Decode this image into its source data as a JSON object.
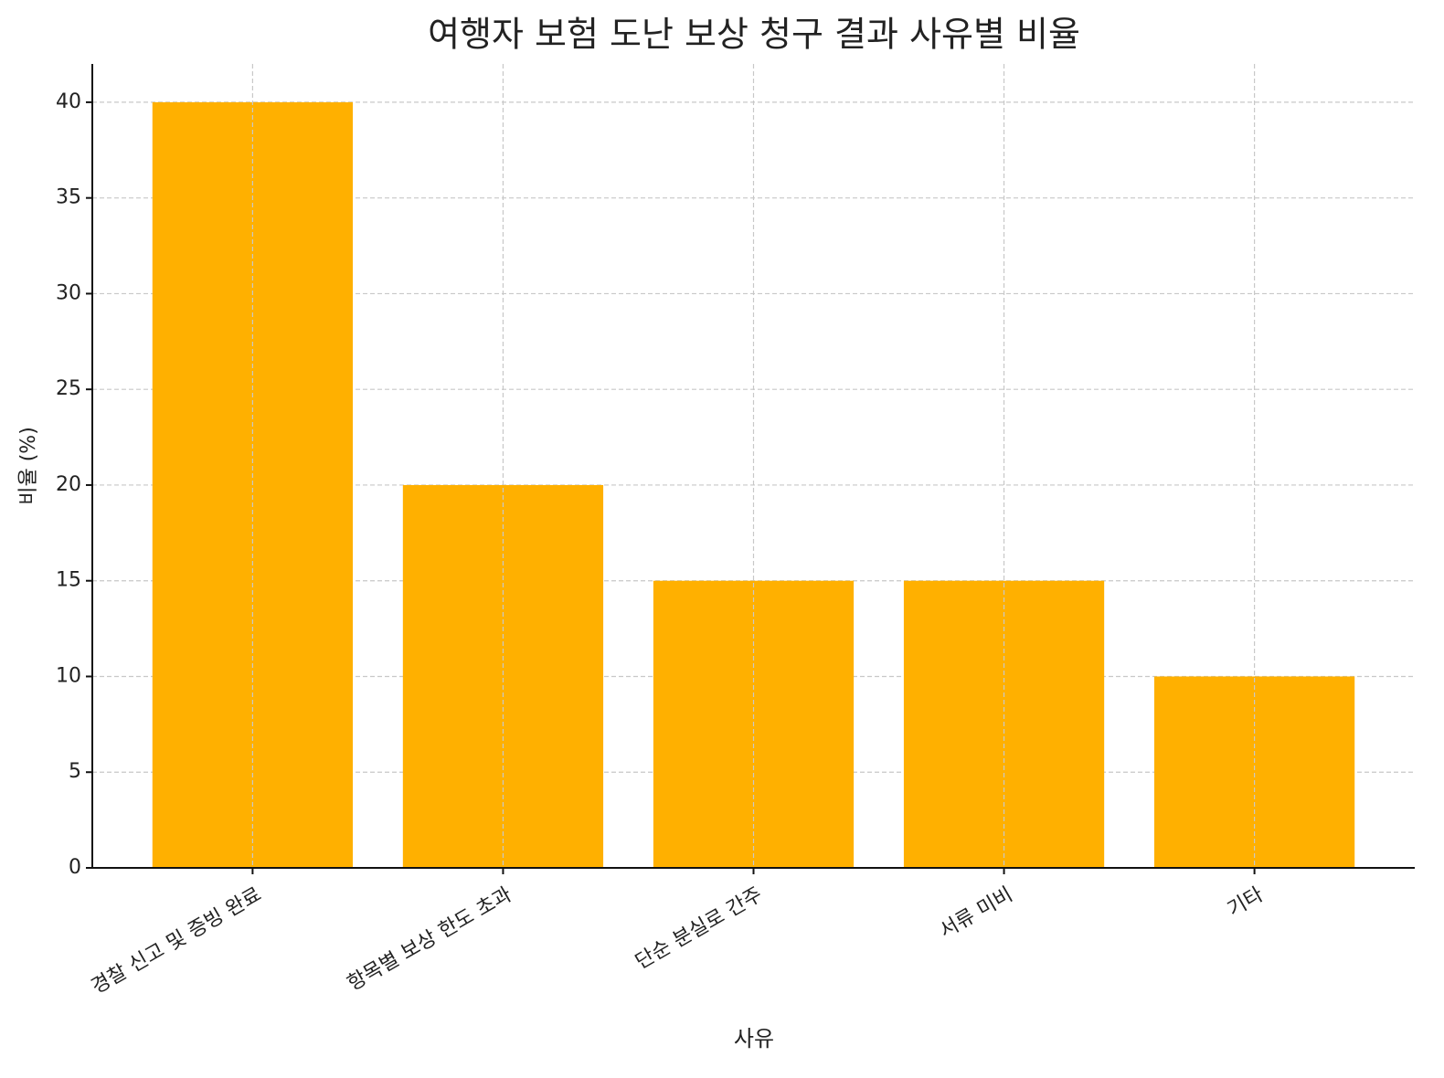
{
  "chart_data": {
    "type": "bar",
    "title": "여행자 보험 도난 보상 청구 결과 사유별 비율",
    "x_label": "사유",
    "y_label": "비율 (%)",
    "categories": [
      "경찰 신고 및 증빙 완료",
      "항목별 보상 한도 초과",
      "단순 분실로 간주",
      "서류 미비",
      "기타"
    ],
    "values": [
      40,
      20,
      15,
      15,
      10
    ],
    "color": "#ffb000",
    "ylim": [
      0,
      42
    ],
    "yticks": [
      0,
      5,
      10,
      15,
      20,
      25,
      30,
      35,
      40
    ],
    "grid": true
  }
}
